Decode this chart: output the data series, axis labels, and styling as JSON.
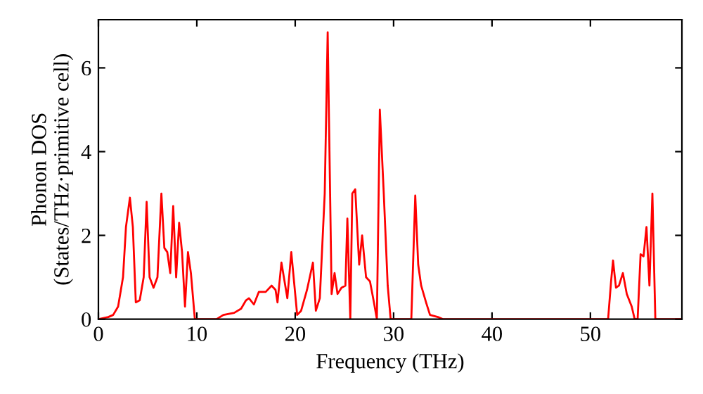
{
  "chart_data": {
    "type": "line",
    "xlabel": "Frequency (THz)",
    "ylabel": "Phonon DOS\n(States/THz·primitive cell)",
    "xlim": [
      0,
      59.3
    ],
    "ylim": [
      0,
      7.15
    ],
    "xticks": [
      0,
      10,
      20,
      30,
      40,
      50
    ],
    "yticks": [
      0,
      2,
      4,
      6
    ],
    "grid": false,
    "legend": false,
    "series": [
      {
        "color": "#ff0000",
        "x": [
          0,
          1,
          1.5,
          2,
          2.5,
          2.8,
          3.2,
          3.5,
          3.8,
          4.2,
          4.6,
          4.9,
          5.2,
          5.6,
          6.0,
          6.4,
          6.7,
          7.0,
          7.3,
          7.6,
          7.9,
          8.2,
          8.5,
          8.8,
          9.1,
          9.4,
          9.8,
          12,
          12.7,
          13.8,
          14.5,
          15,
          15.3,
          15.8,
          16.3,
          17,
          17.6,
          18,
          18.2,
          18.6,
          19.2,
          19.6,
          20.2,
          20.6,
          21.2,
          21.8,
          22.1,
          22.5,
          23.0,
          23.3,
          23.7,
          24.0,
          24.3,
          24.7,
          25.1,
          25.3,
          25.6,
          25.8,
          26.1,
          26.5,
          26.8,
          27.2,
          27.6,
          28.0,
          28.3,
          28.6,
          29.0,
          29.4,
          29.7,
          31.8,
          32.2,
          32.5,
          32.8,
          33.3,
          33.7,
          34.5,
          35,
          51.8,
          52.1,
          52.3,
          52.6,
          52.9,
          53.3,
          53.7,
          54.2,
          54.5,
          54.8,
          55.1,
          55.4,
          55.7,
          56.0,
          56.3,
          56.6,
          59.3
        ],
        "values": [
          0,
          0.05,
          0.1,
          0.3,
          1.0,
          2.2,
          2.9,
          2.2,
          0.4,
          0.45,
          1.0,
          2.8,
          1.0,
          0.75,
          1.0,
          3.0,
          1.7,
          1.6,
          1.1,
          2.7,
          1.0,
          2.3,
          1.6,
          0.3,
          1.6,
          1.1,
          0,
          0,
          0.1,
          0.15,
          0.25,
          0.45,
          0.5,
          0.35,
          0.65,
          0.65,
          0.8,
          0.7,
          0.4,
          1.35,
          0.5,
          1.6,
          0.1,
          0.2,
          0.7,
          1.35,
          0.2,
          0.5,
          3.0,
          6.85,
          0.6,
          1.1,
          0.6,
          0.75,
          0.8,
          2.4,
          0,
          3.0,
          3.1,
          1.3,
          2.0,
          1.0,
          0.9,
          0.4,
          0,
          5.0,
          3.0,
          0.8,
          0,
          0,
          2.95,
          1.3,
          0.8,
          0.4,
          0.1,
          0.05,
          0,
          0,
          0.9,
          1.4,
          0.75,
          0.8,
          1.1,
          0.6,
          0.3,
          0,
          0,
          1.55,
          1.5,
          2.2,
          0.8,
          3.0,
          0,
          0
        ]
      }
    ]
  }
}
